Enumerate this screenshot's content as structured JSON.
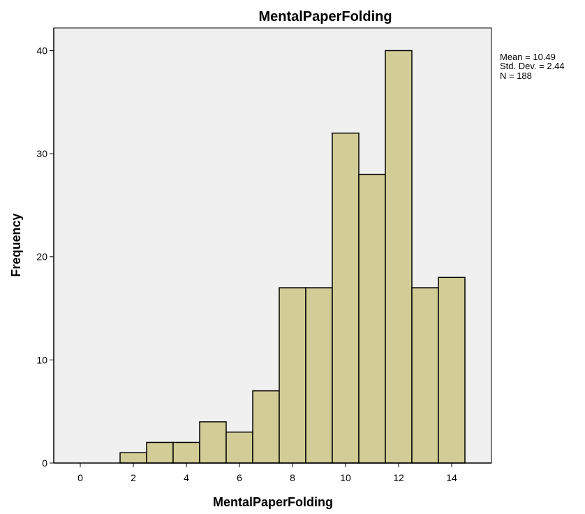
{
  "chart_data": {
    "type": "bar",
    "title": "MentalPaperFolding",
    "xlabel": "MentalPaperFolding",
    "ylabel": "Frequency",
    "bin_edges": [
      1.5,
      2.5,
      3.5,
      4.5,
      5.5,
      6.5,
      7.5,
      8.5,
      9.5,
      10.5,
      11.5,
      12.5,
      13.5,
      14.5
    ],
    "bin_centers": [
      2,
      3,
      4,
      5,
      6,
      7,
      8,
      9,
      10,
      11,
      12,
      13,
      14
    ],
    "values": [
      1,
      2,
      2,
      4,
      3,
      7,
      17,
      17,
      32,
      28,
      40,
      17,
      18
    ],
    "xlim": [
      -1,
      15.5
    ],
    "ylim": [
      0,
      42.2
    ],
    "x_ticks": [
      0,
      2,
      4,
      6,
      8,
      10,
      12,
      14
    ],
    "y_ticks": [
      0,
      10,
      20,
      30,
      40
    ],
    "grid": false,
    "stats": {
      "mean_line": "Mean = 10.49",
      "std_line": "Std. Dev. = 2.44",
      "n_line": "N = 188"
    }
  },
  "colors": {
    "bar_fill": "#D2CC96",
    "bar_stroke": "#000000",
    "plot_background": "#F0F0F0",
    "axis": "#000000"
  }
}
